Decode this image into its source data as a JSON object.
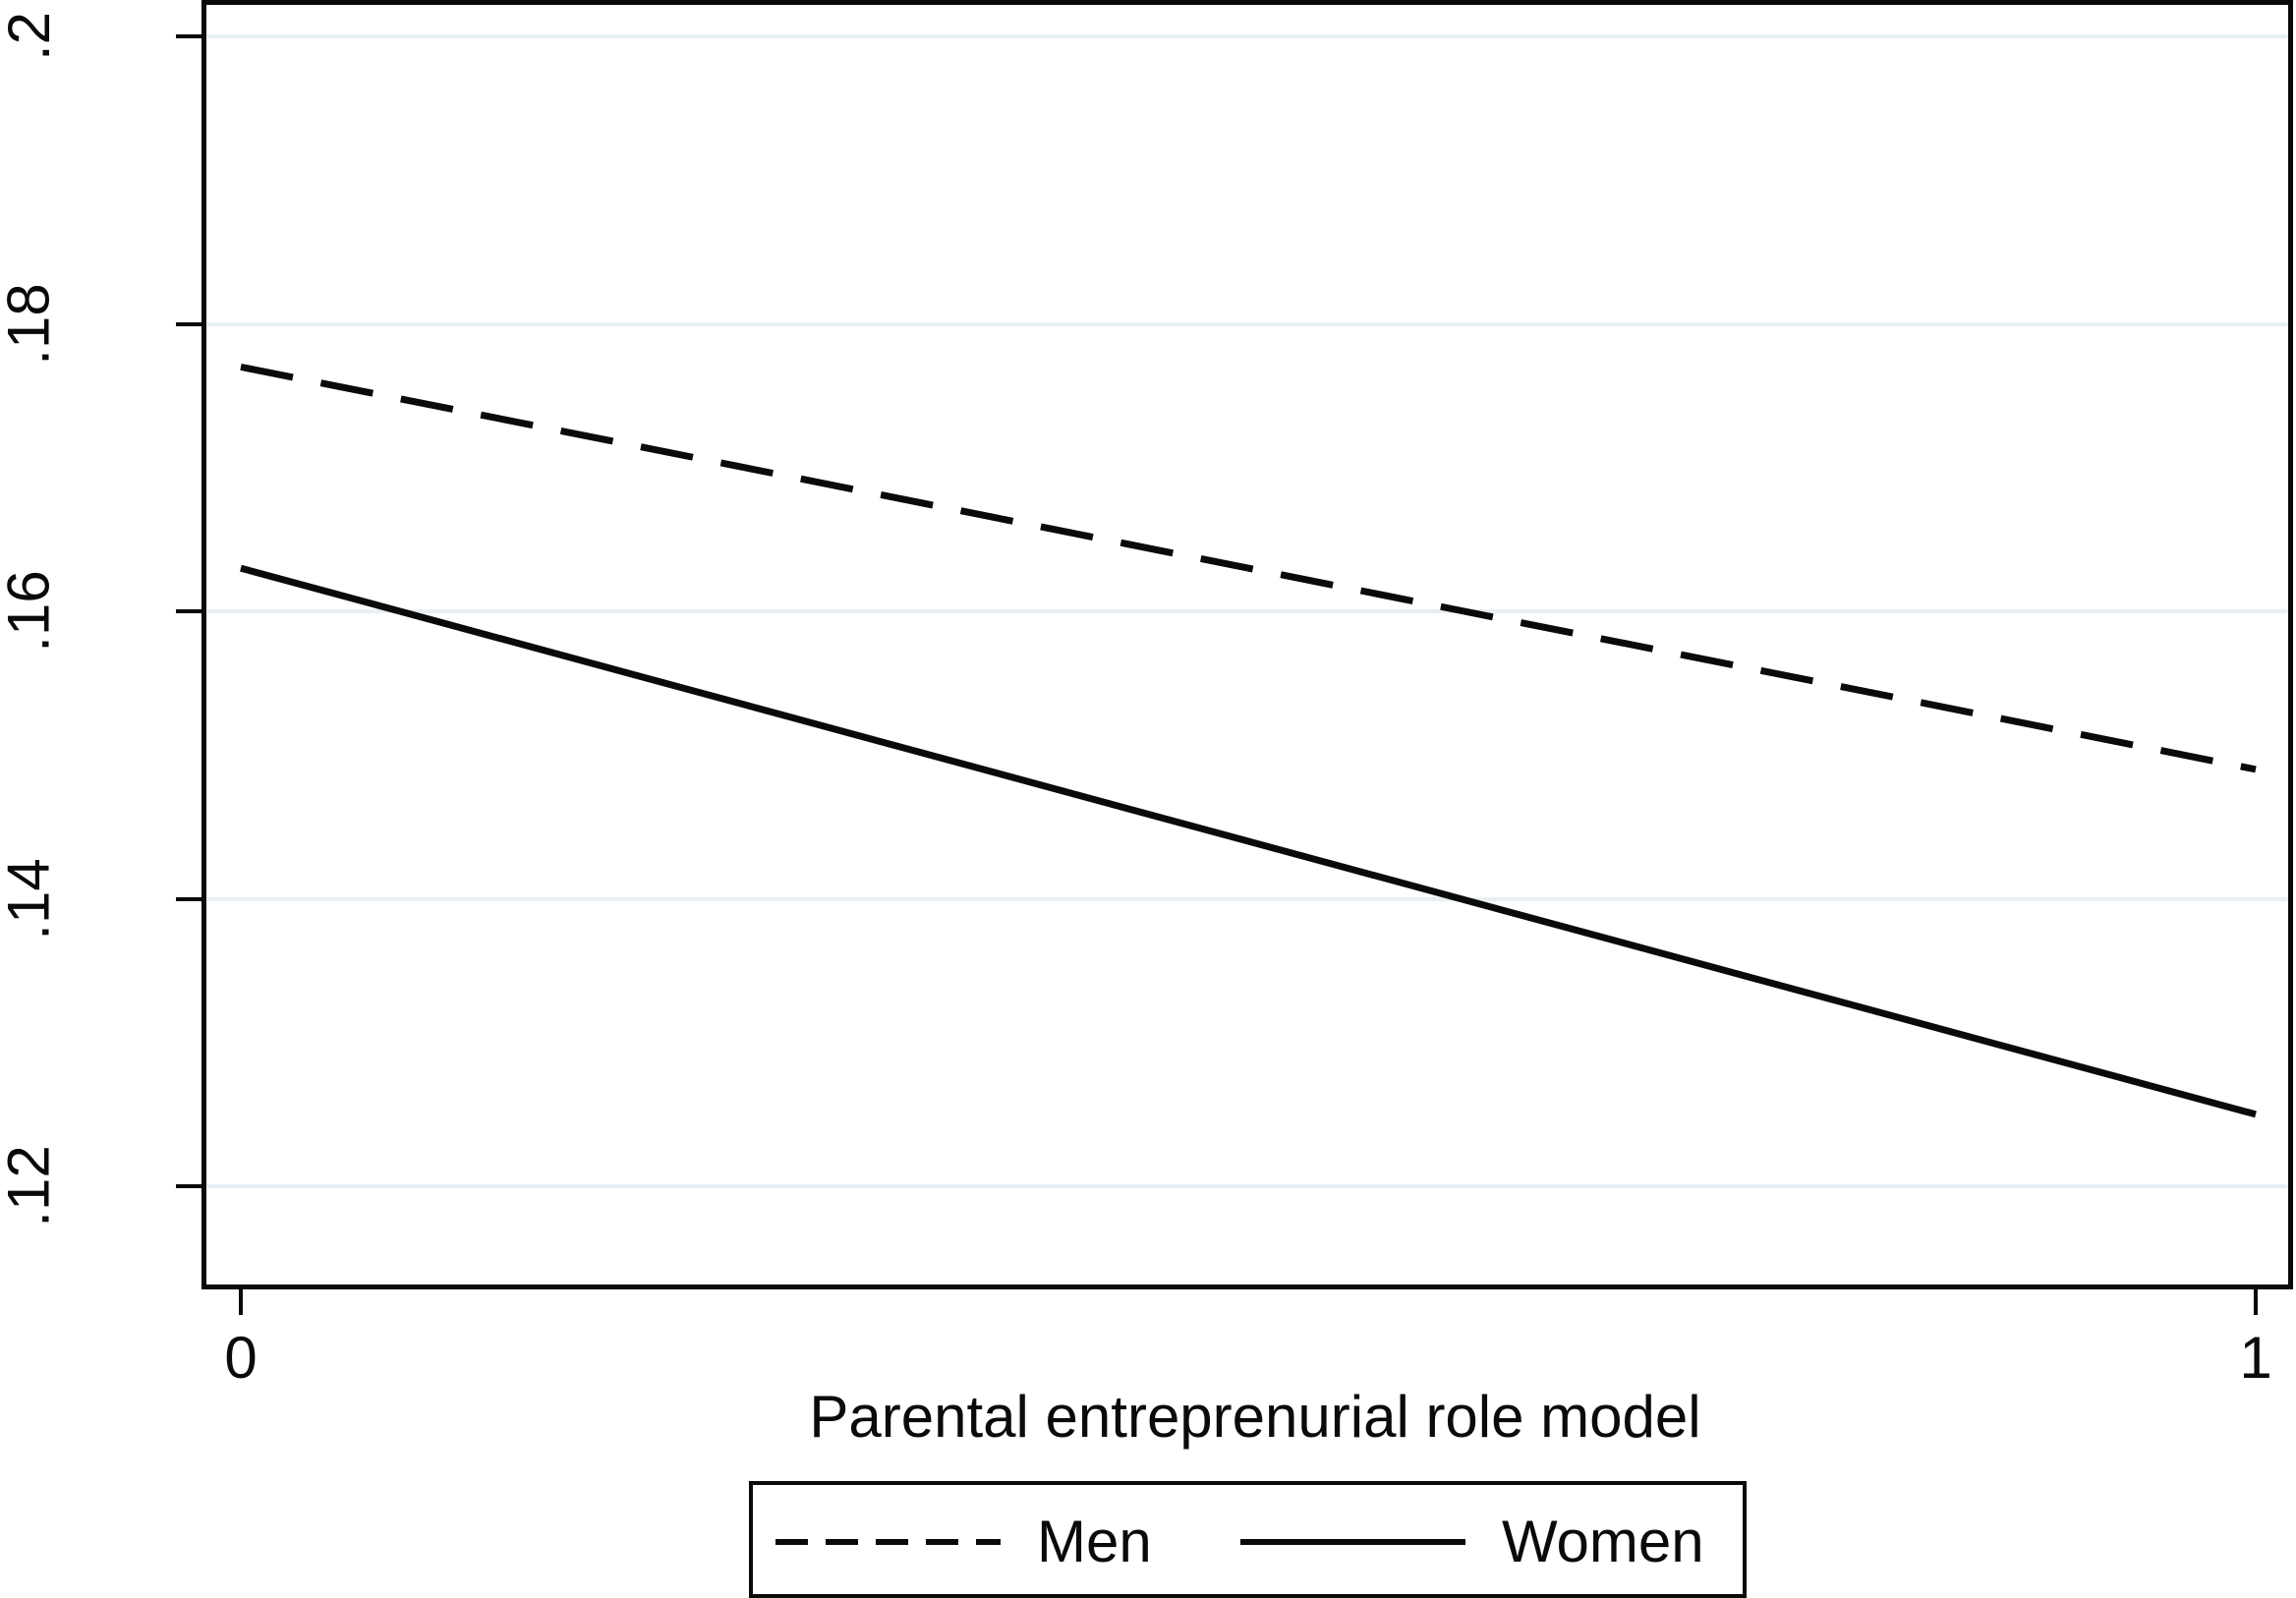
{
  "chart_data": {
    "type": "line",
    "title": "",
    "xlabel": "Parental entreprenurial role model",
    "ylabel": "",
    "x": [
      0,
      1
    ],
    "series": [
      {
        "name": "Men",
        "style": "dashed",
        "values": [
          0.177,
          0.149
        ]
      },
      {
        "name": "Women",
        "style": "solid",
        "values": [
          0.163,
          0.125
        ]
      }
    ],
    "x_tick_values": [
      0,
      1
    ],
    "x_tick_labels": [
      "0",
      "1"
    ],
    "y_tick_values": [
      0.2,
      0.18,
      0.16,
      0.14,
      0.12
    ],
    "y_tick_labels": [
      ".2",
      ".18",
      ".16",
      ".14",
      ".12"
    ],
    "xlim": [
      -0.02,
      1.02
    ],
    "ylim": [
      0.113,
      0.202
    ],
    "grid": true,
    "legend_position": "bottom-center",
    "colors": {
      "line": "#0a0a0a",
      "grid": "#e8eff2",
      "background": "#ffffff"
    }
  },
  "legend": {
    "entries": [
      {
        "label": "Men",
        "style": "dashed"
      },
      {
        "label": "Women",
        "style": "solid"
      }
    ]
  }
}
